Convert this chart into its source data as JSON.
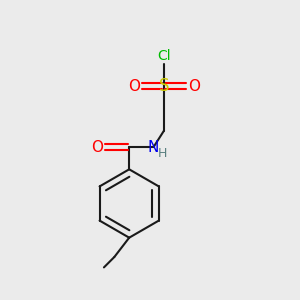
{
  "background_color": "#ebebeb",
  "bond_color": "#1a1a1a",
  "bond_width": 1.5,
  "colors": {
    "O": "#ff0000",
    "S": "#cccc00",
    "Cl": "#00bb00",
    "N": "#0000ee",
    "H": "#5a8080",
    "C": "#1a1a1a"
  },
  "figsize": [
    3.0,
    3.0
  ],
  "dpi": 100
}
